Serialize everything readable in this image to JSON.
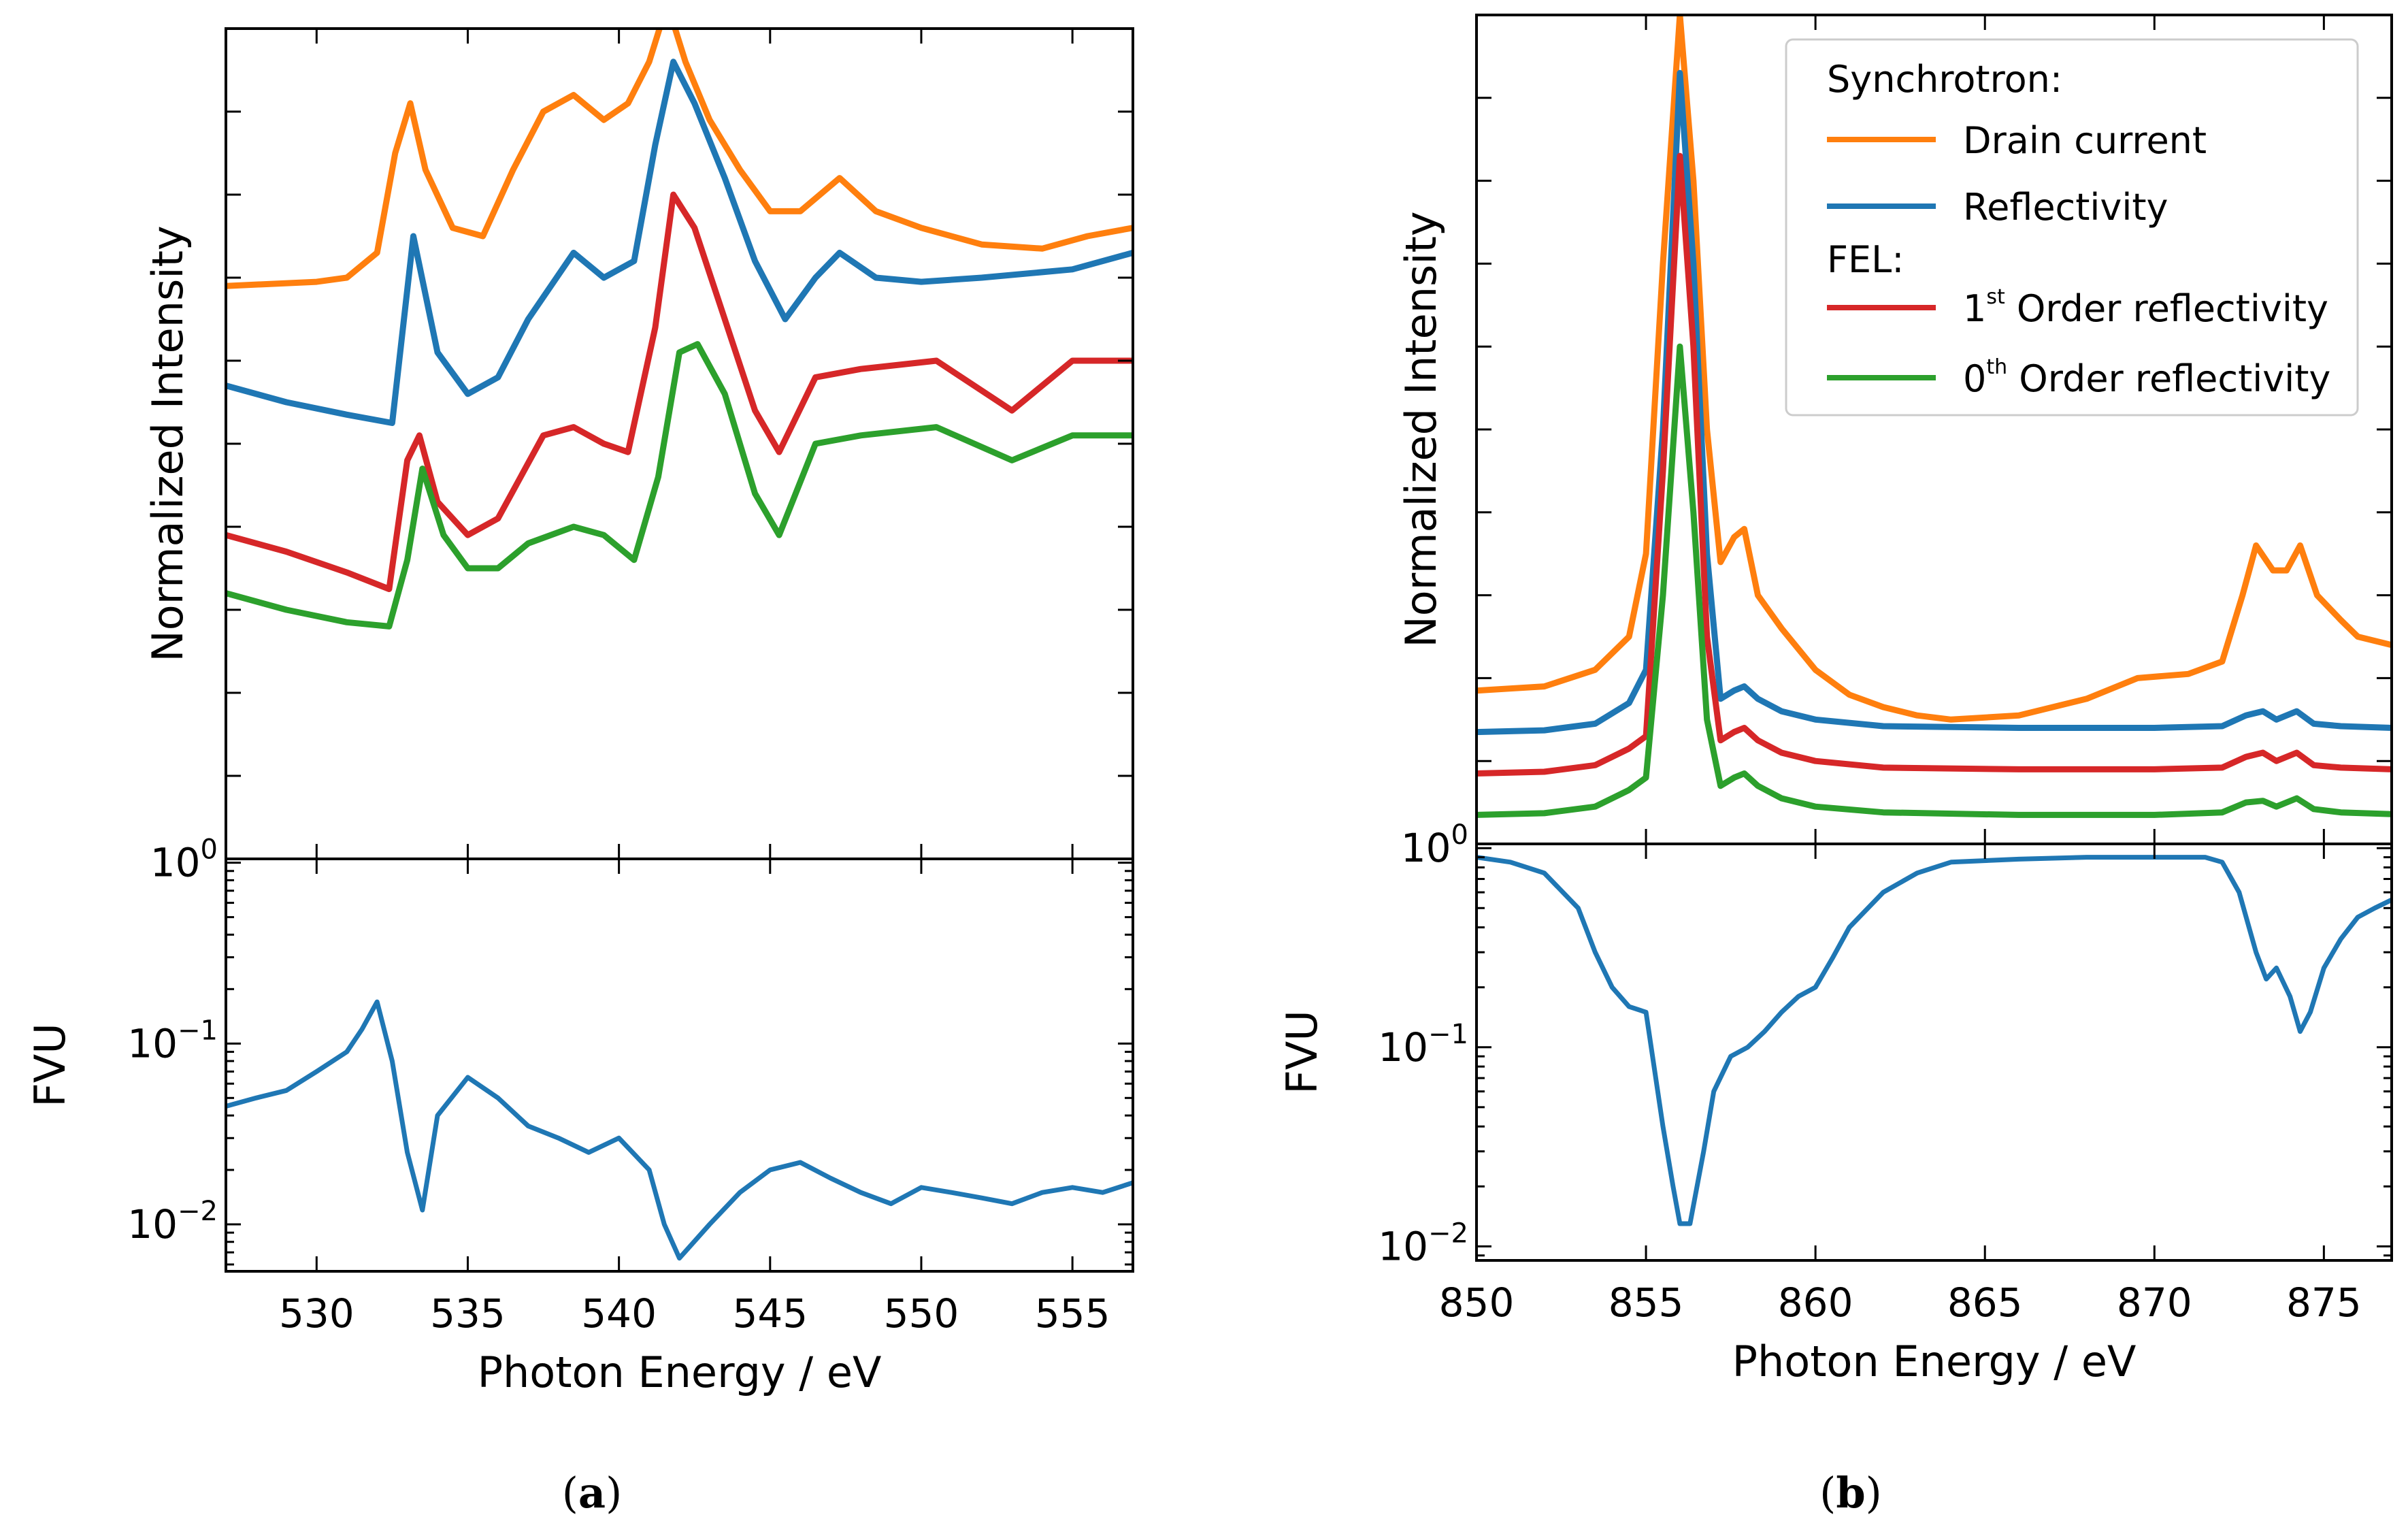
{
  "chart_data": [
    {
      "id": "a",
      "caption": "a",
      "type": "line",
      "xlabel": "Photon Energy / eV",
      "xlim": [
        527,
        557
      ],
      "xticks": [
        530,
        535,
        540,
        545,
        550,
        555
      ],
      "upper": {
        "ylabel": "Normalized Intensity",
        "ylim": [
          0,
          10
        ],
        "yticks_labeled": false,
        "series": [
          {
            "name": "Drain current",
            "color": "#ff7f0e",
            "x": [
              527,
              530,
              531,
              532,
              532.6,
              533.1,
              533.6,
              534.5,
              535.5,
              536.5,
              537.5,
              538.5,
              539.5,
              540.3,
              541,
              541.6,
              542.2,
              543,
              544,
              545,
              546,
              547.3,
              548.5,
              550,
              552,
              554,
              555.5,
              557
            ],
            "y": [
              6.9,
              6.95,
              7.0,
              7.3,
              8.5,
              9.1,
              8.3,
              7.6,
              7.5,
              8.3,
              9.0,
              9.2,
              8.9,
              9.1,
              9.6,
              10.3,
              9.6,
              8.9,
              8.3,
              7.8,
              7.8,
              8.2,
              7.8,
              7.6,
              7.4,
              7.35,
              7.5,
              7.6
            ]
          },
          {
            "name": "Reflectivity",
            "color": "#1f77b4",
            "x": [
              527,
              529,
              531,
              532.5,
              533.2,
              534,
              535,
              536,
              537,
              538.5,
              539.5,
              540.5,
              541.2,
              541.8,
              542.5,
              543.5,
              544.5,
              545.5,
              546.5,
              547.3,
              548.5,
              550,
              552,
              555,
              557
            ],
            "y": [
              5.7,
              5.5,
              5.35,
              5.25,
              7.5,
              6.1,
              5.6,
              5.8,
              6.5,
              7.3,
              7.0,
              7.2,
              8.6,
              9.6,
              9.1,
              8.2,
              7.2,
              6.5,
              7.0,
              7.3,
              7.0,
              6.95,
              7.0,
              7.1,
              7.3
            ]
          },
          {
            "name": "1st Order reflectivity",
            "color": "#d62728",
            "x": [
              527,
              529,
              531,
              532.4,
              533,
              533.4,
              534,
              535,
              536,
              537.5,
              538.5,
              539.5,
              540.3,
              541.2,
              541.8,
              542.5,
              543.5,
              544.5,
              545.3,
              546.5,
              548,
              550.5,
              553,
              555,
              557
            ],
            "y": [
              3.9,
              3.7,
              3.45,
              3.25,
              4.8,
              5.1,
              4.3,
              3.9,
              4.1,
              5.1,
              5.2,
              5.0,
              4.9,
              6.4,
              8.0,
              7.6,
              6.5,
              5.4,
              4.9,
              5.8,
              5.9,
              6.0,
              5.4,
              6.0,
              6.0
            ]
          },
          {
            "name": "0th Order reflectivity",
            "color": "#2ca02c",
            "x": [
              527,
              529,
              531,
              532.4,
              533,
              533.5,
              534.2,
              535,
              536,
              537,
              538.5,
              539.5,
              540.5,
              541.3,
              542,
              542.6,
              543.5,
              544.5,
              545.3,
              546.5,
              548,
              550.5,
              553,
              555,
              557
            ],
            "y": [
              3.2,
              3.0,
              2.85,
              2.8,
              3.6,
              4.7,
              3.9,
              3.5,
              3.5,
              3.8,
              4.0,
              3.9,
              3.6,
              4.6,
              6.1,
              6.2,
              5.6,
              4.4,
              3.9,
              5.0,
              5.1,
              5.2,
              4.8,
              5.1,
              5.1
            ]
          }
        ]
      },
      "lower": {
        "ylabel": "FVU",
        "yscale": "log",
        "ylim": [
          0.0055,
          1.05
        ],
        "yticks": [
          0.01,
          0.1,
          1
        ],
        "ytick_labels": [
          {
            "base": "10",
            "exp": "−2"
          },
          {
            "base": "10",
            "exp": "−1"
          },
          {
            "base": "10",
            "exp": "0"
          }
        ],
        "series": [
          {
            "name": "FVU",
            "color": "#1f77b4",
            "x": [
              527,
              528,
              529,
              530,
              531,
              531.5,
              532,
              532.5,
              533,
              533.5,
              534,
              535,
              536,
              537,
              538,
              539,
              540,
              541,
              541.5,
              542,
              543,
              544,
              545,
              546,
              547,
              548,
              549,
              550,
              551,
              552,
              553,
              554,
              555,
              556,
              557
            ],
            "y": [
              0.045,
              0.05,
              0.055,
              0.07,
              0.09,
              0.12,
              0.17,
              0.08,
              0.025,
              0.012,
              0.04,
              0.065,
              0.05,
              0.035,
              0.03,
              0.025,
              0.03,
              0.02,
              0.01,
              0.0065,
              0.01,
              0.015,
              0.02,
              0.022,
              0.018,
              0.015,
              0.013,
              0.016,
              0.015,
              0.014,
              0.013,
              0.015,
              0.016,
              0.015,
              0.017
            ]
          }
        ]
      }
    },
    {
      "id": "b",
      "caption": "b",
      "type": "line",
      "xlabel": "Photon Energy / eV",
      "xlim": [
        850,
        877
      ],
      "xticks": [
        850,
        855,
        860,
        865,
        870,
        875
      ],
      "upper": {
        "ylabel": "Normalized Intensity",
        "ylim": [
          0,
          10
        ],
        "yticks_labeled": false,
        "legend": {
          "location": "top-right",
          "groups": [
            {
              "header": "Synchrotron:",
              "entries": [
                {
                  "label": "Drain current",
                  "color": "#ff7f0e"
                },
                {
                  "label": "Reflectivity",
                  "color": "#1f77b4"
                }
              ]
            },
            {
              "header": "FEL:",
              "entries": [
                {
                  "label_main": "1",
                  "label_sup": "st",
                  "label_rest": " Order reflectivity",
                  "color": "#d62728"
                },
                {
                  "label_main": "0",
                  "label_sup": "th",
                  "label_rest": " Order reflectivity",
                  "color": "#2ca02c"
                }
              ]
            }
          ]
        },
        "series": [
          {
            "name": "Drain current",
            "color": "#ff7f0e",
            "x": [
              850,
              852,
              853.5,
              854.5,
              855,
              855.5,
              856,
              856.4,
              856.8,
              857.2,
              857.6,
              857.9,
              858.3,
              859,
              860,
              861,
              862,
              863,
              864,
              866,
              868,
              869.5,
              871,
              872,
              872.6,
              873,
              873.5,
              873.9,
              874.3,
              874.8,
              875.5,
              876,
              877
            ],
            "y": [
              1.85,
              1.9,
              2.1,
              2.5,
              3.5,
              7.0,
              10.0,
              8.0,
              5.0,
              3.4,
              3.7,
              3.8,
              3.0,
              2.6,
              2.1,
              1.8,
              1.65,
              1.55,
              1.5,
              1.55,
              1.75,
              2.0,
              2.05,
              2.2,
              3.0,
              3.6,
              3.3,
              3.3,
              3.6,
              3.0,
              2.7,
              2.5,
              2.4
            ]
          },
          {
            "name": "Reflectivity",
            "color": "#1f77b4",
            "x": [
              850,
              852,
              853.5,
              854.5,
              855,
              855.5,
              856,
              856.4,
              856.8,
              857.2,
              857.6,
              857.9,
              858.3,
              859,
              860,
              862,
              866,
              870,
              872,
              872.7,
              873.2,
              873.6,
              874.2,
              874.7,
              875.5,
              877
            ],
            "y": [
              1.35,
              1.37,
              1.45,
              1.7,
              2.1,
              5.0,
              9.3,
              7.0,
              3.5,
              1.75,
              1.85,
              1.9,
              1.75,
              1.6,
              1.5,
              1.42,
              1.4,
              1.4,
              1.42,
              1.55,
              1.6,
              1.5,
              1.6,
              1.45,
              1.42,
              1.4
            ]
          },
          {
            "name": "1st Order reflectivity",
            "color": "#d62728",
            "x": [
              850,
              852,
              853.5,
              854.5,
              855,
              855.5,
              856,
              856.4,
              856.8,
              857.2,
              857.6,
              857.9,
              858.3,
              859,
              860,
              862,
              866,
              870,
              872,
              872.7,
              873.2,
              873.6,
              874.2,
              874.7,
              875.5,
              877
            ],
            "y": [
              0.85,
              0.87,
              0.95,
              1.15,
              1.3,
              4.5,
              8.3,
              6.0,
              2.5,
              1.25,
              1.35,
              1.4,
              1.25,
              1.1,
              1.0,
              0.92,
              0.9,
              0.9,
              0.92,
              1.05,
              1.1,
              1.0,
              1.1,
              0.95,
              0.92,
              0.9
            ]
          },
          {
            "name": "0th Order reflectivity",
            "color": "#2ca02c",
            "x": [
              850,
              852,
              853.5,
              854.5,
              855,
              855.5,
              856,
              856.4,
              856.8,
              857.2,
              857.6,
              857.9,
              858.3,
              859,
              860,
              862,
              866,
              870,
              872,
              872.7,
              873.2,
              873.6,
              874.2,
              874.7,
              875.5,
              877
            ],
            "y": [
              0.35,
              0.37,
              0.45,
              0.65,
              0.8,
              3.0,
              6.0,
              4.0,
              1.5,
              0.7,
              0.8,
              0.85,
              0.7,
              0.55,
              0.45,
              0.38,
              0.35,
              0.35,
              0.38,
              0.5,
              0.52,
              0.45,
              0.55,
              0.42,
              0.38,
              0.36
            ]
          }
        ]
      },
      "lower": {
        "ylabel": "FVU",
        "yscale": "log",
        "ylim": [
          0.0085,
          1.05
        ],
        "yticks": [
          0.01,
          0.1,
          1
        ],
        "ytick_labels": [
          {
            "base": "10",
            "exp": "−2"
          },
          {
            "base": "10",
            "exp": "−1"
          },
          {
            "base": "10",
            "exp": "0"
          }
        ],
        "series": [
          {
            "name": "FVU",
            "color": "#1f77b4",
            "x": [
              850,
              851,
              852,
              853,
              853.5,
              854,
              854.5,
              855,
              855.5,
              855.8,
              856,
              856.3,
              856.7,
              857,
              857.5,
              858,
              858.5,
              859,
              859.5,
              860,
              860.5,
              861,
              862,
              863,
              864,
              866,
              868,
              870,
              871.5,
              872,
              872.5,
              873,
              873.3,
              873.6,
              874,
              874.3,
              874.6,
              875,
              875.5,
              876,
              876.5,
              877
            ],
            "y": [
              0.9,
              0.85,
              0.75,
              0.5,
              0.3,
              0.2,
              0.16,
              0.15,
              0.04,
              0.02,
              0.013,
              0.013,
              0.03,
              0.06,
              0.09,
              0.1,
              0.12,
              0.15,
              0.18,
              0.2,
              0.28,
              0.4,
              0.6,
              0.75,
              0.85,
              0.88,
              0.9,
              0.9,
              0.9,
              0.85,
              0.6,
              0.3,
              0.22,
              0.25,
              0.18,
              0.12,
              0.15,
              0.25,
              0.35,
              0.45,
              0.5,
              0.55
            ]
          }
        ]
      }
    }
  ]
}
